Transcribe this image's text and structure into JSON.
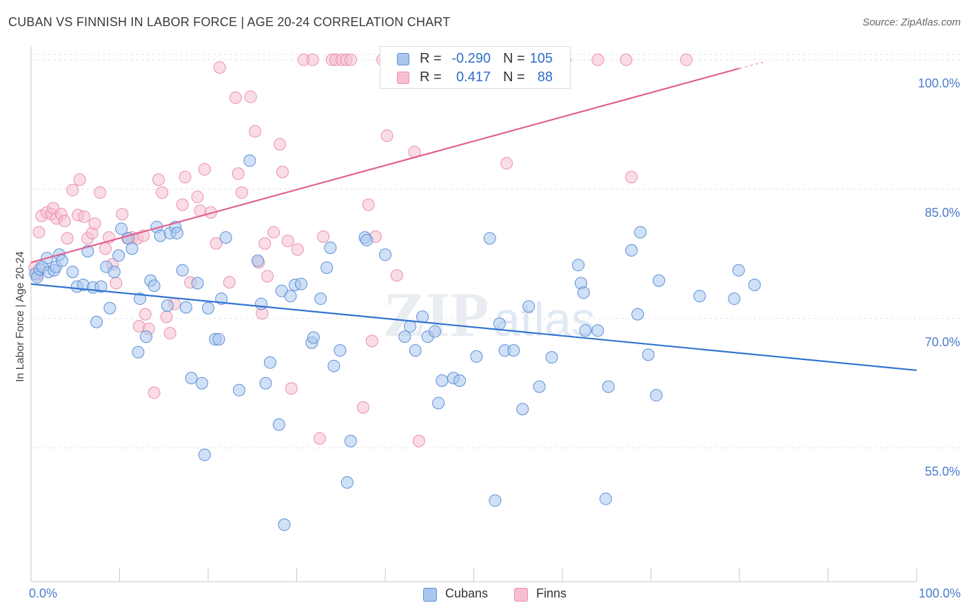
{
  "header": {
    "title": "CUBAN VS FINNISH IN LABOR FORCE | AGE 20-24 CORRELATION CHART",
    "source": "Source: ZipAtlas.com"
  },
  "watermark": {
    "zip": "ZIP",
    "atlas": "atlas"
  },
  "legend_top": {
    "rows": [
      {
        "r_label": "R =",
        "r_value": "-0.290",
        "n_label": "N =",
        "n_value": "105"
      },
      {
        "r_label": "R =",
        "r_value": "0.417",
        "n_label": "N =",
        "n_value": "88"
      }
    ]
  },
  "legend_bottom": {
    "cubans": "Cubans",
    "finns": "Finns"
  },
  "colors": {
    "cubans_fill": "#a9c6ee",
    "cubans_stroke": "#5b8fd6",
    "cubans_line": "#2f73d0",
    "finns_fill": "#f6bfd0",
    "finns_stroke": "#ea8fad",
    "finns_line": "#e0608e",
    "tick_label": "#4a7cc9",
    "grid": "#e3e3e3"
  },
  "chart_data": {
    "type": "scatter",
    "title": "CUBAN VS FINNISH IN LABOR FORCE | AGE 20-24 CORRELATION CHART",
    "xlabel": "",
    "ylabel": "In Labor Force | Age 20-24",
    "xlim": [
      0,
      100
    ],
    "ylim": [
      39.5,
      101.5
    ],
    "x_tick_labels": [
      "0.0%",
      "100.0%"
    ],
    "y_ticks": [
      55,
      70,
      85,
      100
    ],
    "y_tick_labels": [
      "55.0%",
      "70.0%",
      "85.0%",
      "100.0%"
    ],
    "series": [
      {
        "name": "Cubans",
        "R": -0.29,
        "N": 105,
        "trend": {
          "x": [
            0,
            100
          ],
          "y": [
            74.0,
            64.0
          ]
        },
        "points": [
          [
            0.5,
            75.2
          ],
          [
            0.7,
            74.8
          ],
          [
            1.0,
            75.7
          ],
          [
            1.3,
            76.0
          ],
          [
            1.8,
            77.0
          ],
          [
            2.0,
            75.4
          ],
          [
            2.6,
            75.6
          ],
          [
            2.8,
            76.0
          ],
          [
            3.2,
            77.4
          ],
          [
            3.5,
            76.7
          ],
          [
            4.7,
            75.4
          ],
          [
            5.2,
            73.7
          ],
          [
            5.9,
            73.9
          ],
          [
            6.4,
            77.8
          ],
          [
            7.0,
            73.6
          ],
          [
            7.4,
            69.6
          ],
          [
            7.9,
            73.7
          ],
          [
            8.5,
            76.0
          ],
          [
            8.9,
            71.2
          ],
          [
            9.4,
            75.4
          ],
          [
            9.9,
            77.3
          ],
          [
            10.2,
            80.4
          ],
          [
            11.0,
            79.3
          ],
          [
            11.4,
            78.1
          ],
          [
            12.1,
            66.1
          ],
          [
            12.3,
            72.3
          ],
          [
            13.0,
            67.9
          ],
          [
            13.5,
            74.4
          ],
          [
            13.9,
            73.8
          ],
          [
            14.2,
            80.6
          ],
          [
            14.6,
            79.6
          ],
          [
            15.4,
            71.5
          ],
          [
            15.7,
            79.9
          ],
          [
            16.3,
            80.6
          ],
          [
            16.5,
            79.9
          ],
          [
            17.1,
            75.6
          ],
          [
            17.5,
            71.3
          ],
          [
            18.1,
            63.1
          ],
          [
            18.8,
            74.1
          ],
          [
            19.3,
            62.5
          ],
          [
            19.6,
            54.2
          ],
          [
            20.0,
            71.2
          ],
          [
            20.8,
            67.6
          ],
          [
            21.2,
            67.6
          ],
          [
            21.5,
            72.3
          ],
          [
            22.0,
            79.4
          ],
          [
            23.5,
            61.7
          ],
          [
            24.7,
            88.3
          ],
          [
            25.6,
            76.7
          ],
          [
            26.0,
            71.7
          ],
          [
            26.5,
            62.5
          ],
          [
            27.0,
            64.9
          ],
          [
            28.0,
            57.7
          ],
          [
            28.3,
            73.2
          ],
          [
            28.6,
            46.1
          ],
          [
            29.3,
            72.6
          ],
          [
            29.8,
            73.9
          ],
          [
            30.5,
            74.0
          ],
          [
            31.7,
            67.2
          ],
          [
            31.9,
            67.8
          ],
          [
            32.7,
            72.3
          ],
          [
            33.4,
            75.9
          ],
          [
            33.8,
            78.2
          ],
          [
            34.2,
            64.5
          ],
          [
            34.9,
            66.3
          ],
          [
            35.7,
            51.0
          ],
          [
            36.1,
            55.8
          ],
          [
            37.7,
            79.4
          ],
          [
            37.9,
            79.1
          ],
          [
            40.0,
            77.4
          ],
          [
            42.2,
            67.9
          ],
          [
            42.8,
            69.1
          ],
          [
            43.4,
            66.3
          ],
          [
            44.2,
            70.2
          ],
          [
            44.8,
            67.9
          ],
          [
            45.6,
            68.5
          ],
          [
            46.0,
            60.2
          ],
          [
            46.4,
            62.8
          ],
          [
            47.7,
            63.1
          ],
          [
            48.4,
            62.8
          ],
          [
            50.3,
            65.6
          ],
          [
            51.8,
            79.3
          ],
          [
            52.4,
            48.9
          ],
          [
            52.9,
            69.4
          ],
          [
            53.5,
            66.3
          ],
          [
            54.5,
            66.3
          ],
          [
            55.5,
            59.5
          ],
          [
            56.2,
            71.4
          ],
          [
            57.4,
            62.1
          ],
          [
            58.8,
            65.5
          ],
          [
            61.8,
            76.2
          ],
          [
            62.1,
            74.1
          ],
          [
            62.4,
            73.0
          ],
          [
            62.6,
            68.6
          ],
          [
            64.0,
            68.6
          ],
          [
            64.9,
            49.1
          ],
          [
            65.2,
            62.1
          ],
          [
            67.8,
            77.9
          ],
          [
            68.5,
            70.5
          ],
          [
            68.8,
            80.0
          ],
          [
            69.7,
            65.8
          ],
          [
            70.6,
            61.1
          ],
          [
            70.9,
            74.4
          ],
          [
            75.5,
            72.6
          ],
          [
            79.4,
            72.3
          ],
          [
            79.9,
            75.6
          ],
          [
            81.7,
            73.9
          ]
        ]
      },
      {
        "name": "Finns",
        "R": 0.417,
        "N": 88,
        "trend": {
          "x": [
            0,
            80
          ],
          "y": [
            76.5,
            99.0
          ]
        },
        "trend_dashed": {
          "x": [
            80,
            83
          ],
          "y": [
            99.0,
            99.8
          ]
        },
        "points": [
          [
            0.4,
            75.9
          ],
          [
            0.7,
            75.1
          ],
          [
            0.9,
            80.0
          ],
          [
            1.2,
            81.9
          ],
          [
            1.8,
            82.3
          ],
          [
            2.3,
            82.1
          ],
          [
            2.5,
            82.8
          ],
          [
            2.9,
            81.6
          ],
          [
            3.4,
            82.1
          ],
          [
            3.8,
            81.3
          ],
          [
            4.1,
            79.3
          ],
          [
            4.7,
            84.9
          ],
          [
            5.3,
            82.0
          ],
          [
            5.5,
            86.1
          ],
          [
            6.0,
            81.8
          ],
          [
            6.4,
            79.3
          ],
          [
            6.9,
            79.9
          ],
          [
            7.2,
            81.0
          ],
          [
            7.8,
            84.6
          ],
          [
            8.4,
            78.1
          ],
          [
            8.8,
            79.4
          ],
          [
            9.2,
            76.3
          ],
          [
            9.6,
            74.1
          ],
          [
            10.3,
            82.1
          ],
          [
            10.9,
            79.3
          ],
          [
            11.4,
            79.4
          ],
          [
            12.0,
            79.3
          ],
          [
            12.2,
            69.1
          ],
          [
            12.7,
            79.6
          ],
          [
            12.9,
            70.5
          ],
          [
            13.3,
            68.8
          ],
          [
            13.9,
            61.4
          ],
          [
            14.4,
            86.1
          ],
          [
            14.8,
            84.6
          ],
          [
            15.3,
            70.2
          ],
          [
            15.7,
            68.3
          ],
          [
            16.2,
            71.7
          ],
          [
            17.1,
            83.2
          ],
          [
            17.4,
            86.4
          ],
          [
            18.0,
            74.2
          ],
          [
            18.8,
            84.1
          ],
          [
            19.1,
            82.5
          ],
          [
            19.6,
            87.3
          ],
          [
            20.3,
            82.3
          ],
          [
            20.9,
            78.7
          ],
          [
            21.3,
            99.1
          ],
          [
            22.4,
            74.2
          ],
          [
            23.1,
            95.6
          ],
          [
            23.4,
            86.8
          ],
          [
            23.8,
            84.6
          ],
          [
            24.8,
            95.7
          ],
          [
            25.3,
            91.7
          ],
          [
            25.7,
            76.5
          ],
          [
            26.1,
            70.6
          ],
          [
            26.4,
            78.7
          ],
          [
            26.7,
            74.9
          ],
          [
            27.4,
            80.0
          ],
          [
            28.1,
            90.2
          ],
          [
            28.4,
            87.0
          ],
          [
            29.0,
            79.0
          ],
          [
            29.4,
            61.9
          ],
          [
            30.1,
            78.0
          ],
          [
            30.8,
            100.0
          ],
          [
            31.8,
            100.0
          ],
          [
            32.6,
            56.1
          ],
          [
            33.0,
            79.5
          ],
          [
            34.0,
            100.0
          ],
          [
            34.4,
            100.0
          ],
          [
            35.1,
            100.0
          ],
          [
            35.6,
            100.0
          ],
          [
            36.1,
            100.0
          ],
          [
            37.5,
            59.7
          ],
          [
            38.1,
            83.2
          ],
          [
            38.5,
            67.4
          ],
          [
            38.9,
            79.5
          ],
          [
            39.7,
            100.0
          ],
          [
            40.2,
            91.2
          ],
          [
            41.3,
            75.0
          ],
          [
            43.3,
            89.3
          ],
          [
            43.8,
            55.8
          ],
          [
            44.7,
            100.0
          ],
          [
            47.6,
            100.0
          ],
          [
            53.7,
            88.0
          ],
          [
            60.3,
            100.0
          ],
          [
            64.0,
            100.0
          ],
          [
            67.2,
            100.0
          ],
          [
            67.8,
            86.4
          ],
          [
            74.0,
            100.0
          ]
        ]
      }
    ]
  }
}
